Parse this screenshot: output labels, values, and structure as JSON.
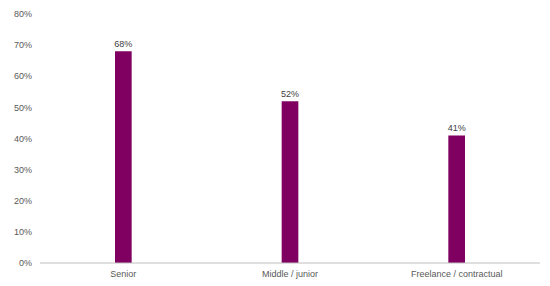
{
  "chart_data": {
    "type": "bar",
    "categories": [
      "Senior",
      "Middle / junior",
      "Freelance / contractual"
    ],
    "values": [
      68,
      52,
      41
    ],
    "value_labels": [
      "68%",
      "52%",
      "41%"
    ],
    "data_labels": true,
    "color": "#7f0060",
    "ylim": [
      0,
      80
    ],
    "yticks": [
      {
        "value": 0,
        "label": "0%"
      },
      {
        "value": 10,
        "label": "10%"
      },
      {
        "value": 20,
        "label": "20%"
      },
      {
        "value": 30,
        "label": "30%"
      },
      {
        "value": 40,
        "label": "40%"
      },
      {
        "value": 50,
        "label": "50%"
      },
      {
        "value": 60,
        "label": "60%"
      },
      {
        "value": 70,
        "label": "70%"
      },
      {
        "value": 80,
        "label": "80%"
      }
    ],
    "grid": false
  }
}
